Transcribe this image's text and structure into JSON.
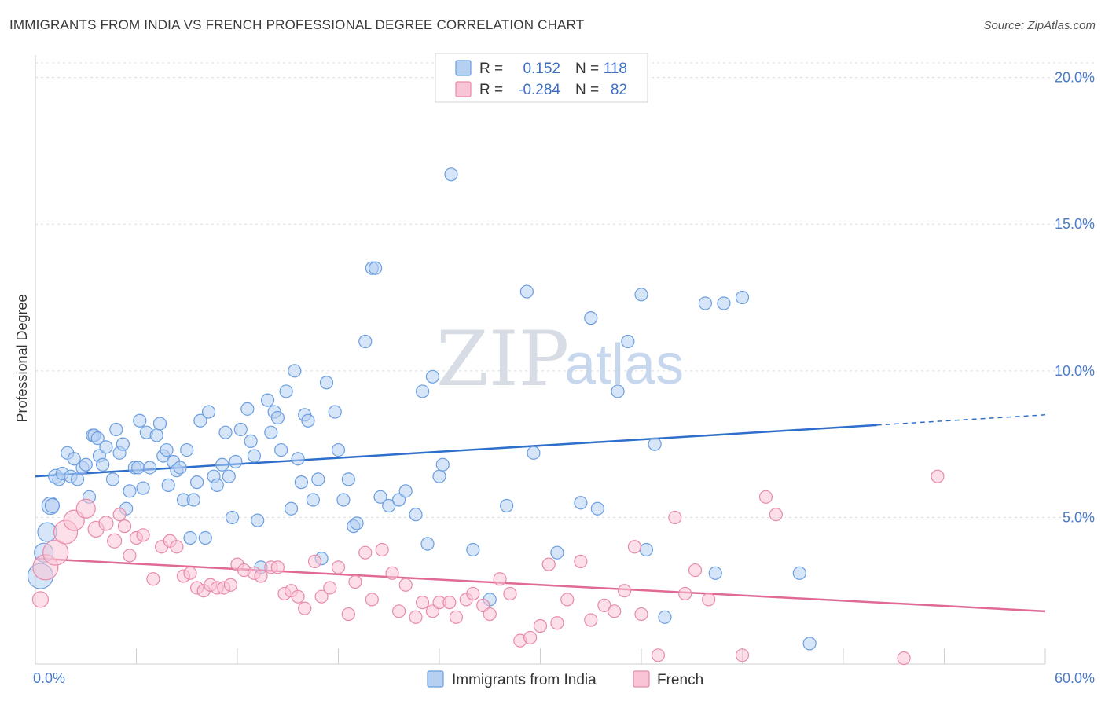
{
  "header": {
    "title": "IMMIGRANTS FROM INDIA VS FRENCH PROFESSIONAL DEGREE CORRELATION CHART",
    "source": "Source: ZipAtlas.com"
  },
  "watermark": {
    "zip": "ZIP",
    "atlas": "atlas"
  },
  "legend": {
    "r_label": "R =",
    "n_label": "N =",
    "entries": [
      {
        "r": "0.152",
        "n": "118",
        "fill": "#b6d0f2",
        "stroke": "#6a9ee0"
      },
      {
        "r": "-0.284",
        "n": "82",
        "fill": "#f9c4d6",
        "stroke": "#e88aab"
      }
    ]
  },
  "bottom_legend": [
    "Immigrants from India",
    "French"
  ],
  "chart_data": {
    "type": "scatter",
    "title": "IMMIGRANTS FROM INDIA VS FRENCH PROFESSIONAL DEGREE CORRELATION CHART",
    "xlabel": "",
    "ylabel": "Professional Degree",
    "xlim": [
      0,
      60
    ],
    "ylim": [
      0,
      20.5
    ],
    "x_tick_labels": [
      "0.0%",
      "60.0%"
    ],
    "y_ticks": [
      5,
      10,
      15,
      20
    ],
    "y_tick_labels": [
      "5.0%",
      "10.0%",
      "15.0%",
      "20.0%"
    ],
    "grid": true,
    "legend_position": "top-center",
    "series": [
      {
        "name": "Immigrants from India",
        "color": "#6a9ee0",
        "fill": "#b6d0f2",
        "line_color": "#2e6fcb",
        "trend": {
          "x": [
            0,
            50,
            60
          ],
          "y": [
            6.4,
            8.15,
            8.5
          ],
          "solid_until": 50
        },
        "points": [
          [
            0.3,
            3.0,
            16
          ],
          [
            0.5,
            3.8,
            12
          ],
          [
            0.7,
            4.5,
            12
          ],
          [
            0.9,
            5.4,
            11
          ],
          [
            1.0,
            5.4,
            9
          ],
          [
            1.2,
            6.4,
            9
          ],
          [
            1.4,
            6.3,
            8
          ],
          [
            1.6,
            6.5,
            8
          ],
          [
            1.9,
            7.2,
            8
          ],
          [
            2.1,
            6.4,
            8
          ],
          [
            2.3,
            7.0,
            8
          ],
          [
            2.5,
            6.3,
            8
          ],
          [
            2.8,
            6.7,
            8
          ],
          [
            3.0,
            6.8,
            8
          ],
          [
            3.2,
            5.7,
            8
          ],
          [
            3.4,
            7.8,
            8
          ],
          [
            3.5,
            7.8,
            8
          ],
          [
            3.7,
            7.7,
            8
          ],
          [
            3.8,
            7.1,
            8
          ],
          [
            4.0,
            6.8,
            8
          ],
          [
            4.2,
            7.4,
            8
          ],
          [
            4.6,
            6.3,
            8
          ],
          [
            4.8,
            8.0,
            8
          ],
          [
            5.0,
            7.2,
            8
          ],
          [
            5.2,
            7.5,
            8
          ],
          [
            5.4,
            5.3,
            8
          ],
          [
            5.6,
            5.9,
            8
          ],
          [
            5.9,
            6.7,
            8
          ],
          [
            6.1,
            6.7,
            8
          ],
          [
            6.2,
            8.3,
            8
          ],
          [
            6.4,
            6.0,
            8
          ],
          [
            6.6,
            7.9,
            8
          ],
          [
            6.8,
            6.7,
            8
          ],
          [
            7.2,
            7.8,
            8
          ],
          [
            7.4,
            8.2,
            8
          ],
          [
            7.6,
            7.1,
            8
          ],
          [
            7.8,
            7.3,
            8
          ],
          [
            7.9,
            6.1,
            8
          ],
          [
            8.2,
            6.9,
            8
          ],
          [
            8.4,
            6.6,
            8
          ],
          [
            8.6,
            6.7,
            8
          ],
          [
            8.8,
            5.6,
            8
          ],
          [
            9.0,
            7.3,
            8
          ],
          [
            9.2,
            4.3,
            8
          ],
          [
            9.4,
            5.6,
            8
          ],
          [
            9.6,
            6.2,
            8
          ],
          [
            9.8,
            8.3,
            8
          ],
          [
            10.1,
            4.3,
            8
          ],
          [
            10.3,
            8.6,
            8
          ],
          [
            10.6,
            6.4,
            8
          ],
          [
            10.8,
            6.1,
            8
          ],
          [
            11.1,
            6.8,
            8
          ],
          [
            11.3,
            7.9,
            8
          ],
          [
            11.5,
            6.4,
            8
          ],
          [
            11.7,
            5.0,
            8
          ],
          [
            11.9,
            6.9,
            8
          ],
          [
            12.2,
            8.0,
            8
          ],
          [
            12.6,
            8.7,
            8
          ],
          [
            12.8,
            7.6,
            8
          ],
          [
            13.0,
            7.1,
            8
          ],
          [
            13.2,
            4.9,
            8
          ],
          [
            13.4,
            3.3,
            8
          ],
          [
            13.8,
            9.0,
            8
          ],
          [
            14.0,
            7.9,
            8
          ],
          [
            14.2,
            8.6,
            8
          ],
          [
            14.4,
            8.4,
            8
          ],
          [
            14.6,
            7.3,
            8
          ],
          [
            14.9,
            9.3,
            8
          ],
          [
            15.2,
            5.3,
            8
          ],
          [
            15.4,
            10.0,
            8
          ],
          [
            15.6,
            7.0,
            8
          ],
          [
            15.8,
            6.2,
            8
          ],
          [
            16.0,
            8.5,
            8
          ],
          [
            16.2,
            8.3,
            8
          ],
          [
            16.5,
            5.6,
            8
          ],
          [
            16.8,
            6.3,
            8
          ],
          [
            17.0,
            3.6,
            8
          ],
          [
            17.3,
            9.6,
            8
          ],
          [
            17.8,
            8.6,
            8
          ],
          [
            18.0,
            7.3,
            8
          ],
          [
            18.3,
            5.6,
            8
          ],
          [
            18.6,
            6.3,
            8
          ],
          [
            18.9,
            4.7,
            8
          ],
          [
            19.1,
            4.8,
            8
          ],
          [
            19.6,
            11.0,
            8
          ],
          [
            20.0,
            13.5,
            8
          ],
          [
            20.2,
            13.5,
            8
          ],
          [
            20.5,
            5.7,
            8
          ],
          [
            21.0,
            5.4,
            8
          ],
          [
            21.6,
            5.6,
            8
          ],
          [
            22.0,
            5.9,
            8
          ],
          [
            22.6,
            5.1,
            8
          ],
          [
            23.0,
            9.3,
            8
          ],
          [
            23.3,
            4.1,
            8
          ],
          [
            23.6,
            9.8,
            8
          ],
          [
            24.0,
            6.4,
            8
          ],
          [
            24.2,
            6.8,
            8
          ],
          [
            24.7,
            16.7,
            8
          ],
          [
            26.0,
            3.9,
            8
          ],
          [
            27.0,
            2.2,
            8
          ],
          [
            28.0,
            5.4,
            8
          ],
          [
            29.2,
            12.7,
            8
          ],
          [
            29.6,
            7.2,
            8
          ],
          [
            31.0,
            3.8,
            8
          ],
          [
            32.4,
            5.5,
            8
          ],
          [
            33.0,
            11.8,
            8
          ],
          [
            33.4,
            5.3,
            8
          ],
          [
            34.6,
            9.3,
            8
          ],
          [
            35.2,
            11.0,
            8
          ],
          [
            36.0,
            12.6,
            8
          ],
          [
            36.3,
            3.9,
            8
          ],
          [
            36.8,
            7.5,
            8
          ],
          [
            37.4,
            1.6,
            8
          ],
          [
            39.8,
            12.3,
            8
          ],
          [
            40.4,
            3.1,
            8
          ],
          [
            40.9,
            12.3,
            8
          ],
          [
            42.0,
            12.5,
            8
          ],
          [
            45.4,
            3.1,
            8
          ],
          [
            46.0,
            0.7,
            8
          ]
        ]
      },
      {
        "name": "French",
        "color": "#e88aab",
        "fill": "#f9c4d6",
        "line_color": "#e06a95",
        "trend": {
          "x": [
            0,
            60
          ],
          "y": [
            3.6,
            1.8
          ],
          "solid_until": 60
        },
        "points": [
          [
            0.3,
            2.2,
            10
          ],
          [
            0.6,
            3.3,
            16
          ],
          [
            1.2,
            3.8,
            16
          ],
          [
            1.8,
            4.5,
            15
          ],
          [
            2.3,
            4.9,
            13
          ],
          [
            3.0,
            5.3,
            12
          ],
          [
            3.6,
            4.6,
            10
          ],
          [
            4.2,
            4.8,
            9
          ],
          [
            4.7,
            4.2,
            9
          ],
          [
            5.0,
            5.1,
            8
          ],
          [
            5.3,
            4.7,
            8
          ],
          [
            5.6,
            3.7,
            8
          ],
          [
            6.0,
            4.3,
            8
          ],
          [
            6.4,
            4.4,
            8
          ],
          [
            7.0,
            2.9,
            8
          ],
          [
            7.5,
            4.0,
            8
          ],
          [
            8.0,
            4.2,
            8
          ],
          [
            8.4,
            4.0,
            8
          ],
          [
            8.8,
            3.0,
            8
          ],
          [
            9.2,
            3.1,
            8
          ],
          [
            9.6,
            2.6,
            8
          ],
          [
            10.0,
            2.5,
            8
          ],
          [
            10.4,
            2.7,
            8
          ],
          [
            10.8,
            2.6,
            8
          ],
          [
            11.2,
            2.6,
            8
          ],
          [
            11.6,
            2.7,
            8
          ],
          [
            12.0,
            3.4,
            8
          ],
          [
            12.4,
            3.2,
            8
          ],
          [
            13.0,
            3.1,
            8
          ],
          [
            13.4,
            3.0,
            8
          ],
          [
            14.0,
            3.3,
            8
          ],
          [
            14.4,
            3.3,
            8
          ],
          [
            14.8,
            2.4,
            8
          ],
          [
            15.2,
            2.5,
            8
          ],
          [
            15.6,
            2.3,
            8
          ],
          [
            16.0,
            1.9,
            8
          ],
          [
            16.6,
            3.5,
            8
          ],
          [
            17.0,
            2.3,
            8
          ],
          [
            17.5,
            2.6,
            8
          ],
          [
            18.0,
            3.3,
            8
          ],
          [
            18.6,
            1.7,
            8
          ],
          [
            19.0,
            2.8,
            8
          ],
          [
            19.6,
            3.8,
            8
          ],
          [
            20.0,
            2.2,
            8
          ],
          [
            20.6,
            3.9,
            8
          ],
          [
            21.2,
            3.1,
            8
          ],
          [
            21.6,
            1.8,
            8
          ],
          [
            22.0,
            2.7,
            8
          ],
          [
            22.6,
            1.6,
            8
          ],
          [
            23.0,
            2.1,
            8
          ],
          [
            23.6,
            1.8,
            8
          ],
          [
            24.0,
            2.1,
            8
          ],
          [
            24.6,
            2.1,
            8
          ],
          [
            25.0,
            1.6,
            8
          ],
          [
            25.6,
            2.2,
            8
          ],
          [
            26.0,
            2.4,
            8
          ],
          [
            26.6,
            2.0,
            8
          ],
          [
            27.0,
            1.7,
            8
          ],
          [
            27.6,
            2.9,
            8
          ],
          [
            28.2,
            2.4,
            8
          ],
          [
            28.8,
            0.8,
            8
          ],
          [
            29.4,
            0.9,
            8
          ],
          [
            30.0,
            1.3,
            8
          ],
          [
            30.5,
            3.4,
            8
          ],
          [
            31.0,
            1.4,
            8
          ],
          [
            31.6,
            2.2,
            8
          ],
          [
            32.4,
            3.5,
            8
          ],
          [
            33.0,
            1.5,
            8
          ],
          [
            33.8,
            2.0,
            8
          ],
          [
            34.4,
            1.8,
            8
          ],
          [
            35.0,
            2.5,
            8
          ],
          [
            35.6,
            4.0,
            8
          ],
          [
            36.0,
            1.7,
            8
          ],
          [
            37.0,
            0.3,
            8
          ],
          [
            38.0,
            5.0,
            8
          ],
          [
            38.6,
            2.4,
            8
          ],
          [
            39.2,
            3.2,
            8
          ],
          [
            40.0,
            2.2,
            8
          ],
          [
            42.0,
            0.3,
            8
          ],
          [
            43.4,
            5.7,
            8
          ],
          [
            44.0,
            5.1,
            8
          ],
          [
            51.6,
            0.2,
            8
          ],
          [
            53.6,
            6.4,
            8
          ]
        ]
      }
    ]
  }
}
